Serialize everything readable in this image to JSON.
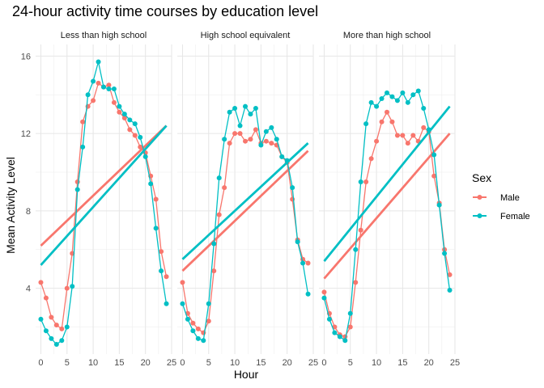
{
  "chart_data": {
    "type": "line",
    "title": "24-hour activity time courses by education level",
    "xlabel": "Hour",
    "ylabel": "Mean Activity Level",
    "xlim": [
      -1,
      25
    ],
    "ylim": [
      0.6,
      16.6
    ],
    "x_ticks": [
      0,
      5,
      10,
      15,
      20,
      25
    ],
    "y_ticks": [
      4,
      8,
      12,
      16
    ],
    "grid": true,
    "legend": {
      "title": "Sex",
      "position": "right",
      "entries": [
        {
          "label": "Male",
          "color": "#F8766D"
        },
        {
          "label": "Female",
          "color": "#00BFC4"
        }
      ]
    },
    "panels": [
      {
        "label": "Less than high school",
        "series": [
          {
            "name": "Male",
            "color": "#F8766D",
            "x": [
              0,
              1,
              2,
              3,
              4,
              5,
              6,
              7,
              8,
              9,
              10,
              11,
              12,
              13,
              14,
              15,
              16,
              17,
              18,
              19,
              20,
              21,
              22,
              23,
              24
            ],
            "y": [
              4.3,
              3.5,
              2.5,
              2.1,
              1.9,
              4.0,
              5.8,
              9.5,
              12.6,
              13.4,
              13.7,
              14.6,
              14.4,
              14.5,
              13.6,
              13.1,
              12.8,
              12.2,
              11.9,
              11.3,
              11.0,
              9.8,
              8.6,
              5.9,
              4.6
            ],
            "trend": [
              6.2,
              12.4
            ]
          },
          {
            "name": "Female",
            "color": "#00BFC4",
            "x": [
              0,
              1,
              2,
              3,
              4,
              5,
              6,
              7,
              8,
              9,
              10,
              11,
              12,
              13,
              14,
              15,
              16,
              17,
              18,
              19,
              20,
              21,
              22,
              23,
              24
            ],
            "y": [
              2.4,
              1.8,
              1.4,
              1.1,
              1.3,
              2.0,
              4.1,
              9.1,
              11.3,
              14.0,
              14.7,
              15.7,
              14.4,
              14.3,
              14.3,
              13.4,
              13.0,
              12.7,
              12.5,
              11.8,
              10.8,
              9.4,
              7.1,
              4.9,
              3.2
            ],
            "trend": [
              5.2,
              12.4
            ]
          }
        ]
      },
      {
        "label": "High school equivalent",
        "series": [
          {
            "name": "Male",
            "color": "#F8766D",
            "x": [
              0,
              1,
              2,
              3,
              4,
              5,
              6,
              7,
              8,
              9,
              10,
              11,
              12,
              13,
              14,
              15,
              16,
              17,
              18,
              19,
              20,
              21,
              22,
              23,
              24
            ],
            "y": [
              4.3,
              2.7,
              2.2,
              1.9,
              1.7,
              2.3,
              4.9,
              7.8,
              9.2,
              11.5,
              12.0,
              12.0,
              11.6,
              11.7,
              12.2,
              11.5,
              11.6,
              11.5,
              11.4,
              10.8,
              10.5,
              8.6,
              6.5,
              5.5,
              5.3
            ],
            "trend": [
              4.9,
              11.1
            ]
          },
          {
            "name": "Female",
            "color": "#00BFC4",
            "x": [
              0,
              1,
              2,
              3,
              4,
              5,
              6,
              7,
              8,
              9,
              10,
              11,
              12,
              13,
              14,
              15,
              16,
              17,
              18,
              19,
              20,
              21,
              22,
              23,
              24
            ],
            "y": [
              3.2,
              2.4,
              1.8,
              1.4,
              1.3,
              3.2,
              6.3,
              9.7,
              11.7,
              13.1,
              13.3,
              12.4,
              13.4,
              13.0,
              13.3,
              11.4,
              12.1,
              12.3,
              11.7,
              10.8,
              10.6,
              9.2,
              6.4,
              5.3,
              3.7
            ],
            "trend": [
              5.5,
              11.5
            ]
          }
        ]
      },
      {
        "label": "More than high school",
        "series": [
          {
            "name": "Male",
            "color": "#F8766D",
            "x": [
              0,
              1,
              2,
              3,
              4,
              5,
              6,
              7,
              8,
              9,
              10,
              11,
              12,
              13,
              14,
              15,
              16,
              17,
              18,
              19,
              20,
              21,
              22,
              23,
              24
            ],
            "y": [
              3.8,
              2.7,
              2.0,
              1.6,
              1.5,
              2.0,
              4.3,
              7.0,
              9.5,
              10.7,
              11.6,
              12.6,
              13.1,
              12.6,
              11.9,
              11.9,
              11.5,
              11.9,
              11.6,
              12.3,
              12.1,
              9.8,
              8.4,
              6.0,
              4.7
            ],
            "trend": [
              4.5,
              12.0
            ]
          },
          {
            "name": "Female",
            "color": "#00BFC4",
            "x": [
              0,
              1,
              2,
              3,
              4,
              5,
              6,
              7,
              8,
              9,
              10,
              11,
              12,
              13,
              14,
              15,
              16,
              17,
              18,
              19,
              20,
              21,
              22,
              23,
              24
            ],
            "y": [
              3.5,
              2.4,
              1.7,
              1.5,
              1.3,
              2.7,
              6.0,
              9.5,
              12.5,
              13.6,
              13.4,
              13.8,
              14.1,
              13.9,
              13.7,
              14.1,
              13.6,
              14.0,
              14.2,
              13.3,
              12.2,
              10.9,
              8.3,
              5.8,
              3.9
            ],
            "trend": [
              5.4,
              13.4
            ]
          }
        ]
      }
    ]
  }
}
